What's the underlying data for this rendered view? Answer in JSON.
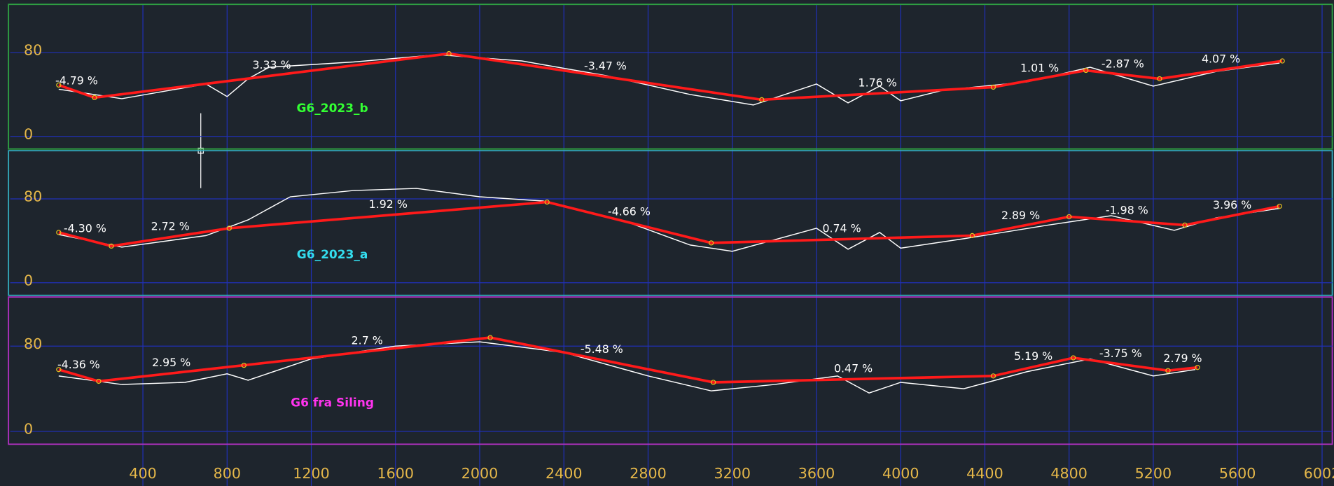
{
  "chart_data": [
    {
      "type": "line",
      "title": "G6_2023_b",
      "title_color": "#33ff33",
      "frame_color": "#2ea043",
      "ylim": [
        -12,
        126
      ],
      "yticks": [
        0,
        80
      ],
      "x": [
        0,
        170,
        1854,
        3340,
        4440,
        4880,
        5230,
        5813
      ],
      "series": [
        {
          "color": "#ff1a1a",
          "values": [
            49,
            37,
            79,
            35,
            47,
            63,
            55,
            72
          ]
        }
      ],
      "terrain": {
        "color": "#ffffff",
        "x": [
          0,
          300,
          700,
          800,
          900,
          1000,
          1400,
          1800,
          2200,
          2600,
          3000,
          3300,
          3600,
          3750,
          3900,
          4000,
          4200,
          4600,
          4900,
          5200,
          5500,
          5800
        ],
        "values": [
          45,
          36,
          50,
          38,
          55,
          66,
          71,
          78,
          72,
          58,
          40,
          30,
          50,
          32,
          48,
          34,
          44,
          52,
          66,
          48,
          62,
          70
        ]
      },
      "grades": [
        "-4.79 %",
        "3.33 %",
        "-3.47 %",
        "1.76 %",
        "1.01 %",
        "-2.87 %",
        "4.07 %"
      ]
    },
    {
      "type": "line",
      "title": "G6_2023_a",
      "title_color": "#33ddee",
      "frame_color": "#33aabb",
      "ylim": [
        -12,
        126
      ],
      "yticks": [
        0,
        80
      ],
      "x": [
        0,
        250,
        810,
        2320,
        3100,
        4340,
        4800,
        5350,
        5800
      ],
      "series": [
        {
          "color": "#ff1a1a",
          "values": [
            48,
            35,
            52,
            77,
            38,
            45,
            63,
            55,
            73
          ]
        }
      ],
      "terrain": {
        "color": "#ffffff",
        "x": [
          0,
          300,
          700,
          900,
          1100,
          1400,
          1700,
          2000,
          2300,
          2700,
          3000,
          3200,
          3600,
          3750,
          3900,
          4000,
          4300,
          4700,
          5000,
          5300,
          5500,
          5800
        ],
        "values": [
          46,
          34,
          45,
          60,
          82,
          88,
          90,
          82,
          78,
          58,
          36,
          30,
          52,
          32,
          48,
          33,
          42,
          55,
          64,
          50,
          62,
          71
        ]
      },
      "grades": [
        "-4.30 %",
        "2.72 %",
        "1.92 %",
        "-4.66 %",
        "0.74 %",
        "2.89 %",
        "-1.98 %",
        "3.96 %"
      ]
    },
    {
      "type": "line",
      "title": "G6 fra Siling",
      "title_color": "#ff33ee",
      "frame_color": "#b030c0",
      "ylim": [
        -12,
        126
      ],
      "yticks": [
        0,
        80
      ],
      "x": [
        0,
        190,
        880,
        2050,
        3110,
        4440,
        4820,
        5270,
        5410
      ],
      "series": [
        {
          "color": "#ff1a1a",
          "values": [
            58,
            47,
            62,
            88,
            46,
            52,
            69,
            57,
            60
          ]
        }
      ],
      "terrain": {
        "color": "#ffffff",
        "x": [
          0,
          300,
          600,
          800,
          900,
          1200,
          1600,
          2000,
          2400,
          2800,
          3100,
          3400,
          3700,
          3850,
          4000,
          4300,
          4600,
          4900,
          5200,
          5400
        ],
        "values": [
          52,
          44,
          46,
          54,
          48,
          68,
          80,
          84,
          74,
          52,
          38,
          44,
          52,
          36,
          46,
          40,
          56,
          68,
          52,
          58
        ]
      },
      "grades": [
        "-4.36 %",
        "2.95 %",
        "2.7 %",
        "-5.48 %",
        "0.47 %",
        "5.19 %",
        "-3.75 %",
        "2.79 %"
      ]
    }
  ],
  "x_axis": {
    "xlim": [
      0,
      6002
    ],
    "xticks": [
      400,
      800,
      1200,
      1600,
      2000,
      2400,
      2800,
      3200,
      3600,
      4000,
      4400,
      4800,
      5200,
      5600,
      6002
    ]
  }
}
